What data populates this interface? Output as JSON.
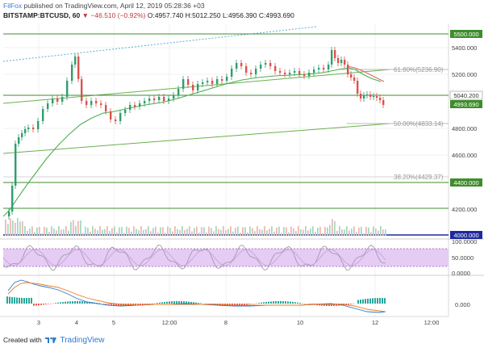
{
  "header": {
    "publisher": "FilFox",
    "published_text": "published on TradingView.com, April 12, 2019 05:28:36 +03",
    "symbol_line": "BITSTAMP:BTCUSD, 60",
    "change_arrow": "▼",
    "change": "−46.510 (−0.92%)",
    "ohlc": "O:4957.740 H:5012.250 L:4956.390 C:4993.690"
  },
  "price_axis": [
    "5400.000",
    "5200.000",
    "4800.000",
    "4600.000",
    "4200.000"
  ],
  "price_tags": {
    "resistance_top": "5500.000",
    "level_5040": "5040.200",
    "last_price": "4993.690",
    "support_4400": "4400.000",
    "support_4000": "4000.000"
  },
  "fib_labels": {
    "f618": "61.80%(5236.90)",
    "f50": "50.00%(4833.14)",
    "f382": "38.20%(4429.37)"
  },
  "stoch_axis": [
    "100.0000",
    "50.0000",
    "0.0000"
  ],
  "macd_axis": [
    "0.000"
  ],
  "time_axis": [
    "3",
    "4",
    "5",
    "12:00",
    "8",
    "10",
    "12",
    "12:00"
  ],
  "footer": {
    "created_with": "Created with",
    "brand": "TradingView"
  },
  "colors": {
    "bull": "#2e9e6e",
    "bear": "#d9534f",
    "level_green": "#3f8c2c",
    "level_blue": "#1e2a9c",
    "ma_green": "#4caf50",
    "ma_red": "#e06666",
    "stoch_fill": "#e6ccf5"
  }
}
